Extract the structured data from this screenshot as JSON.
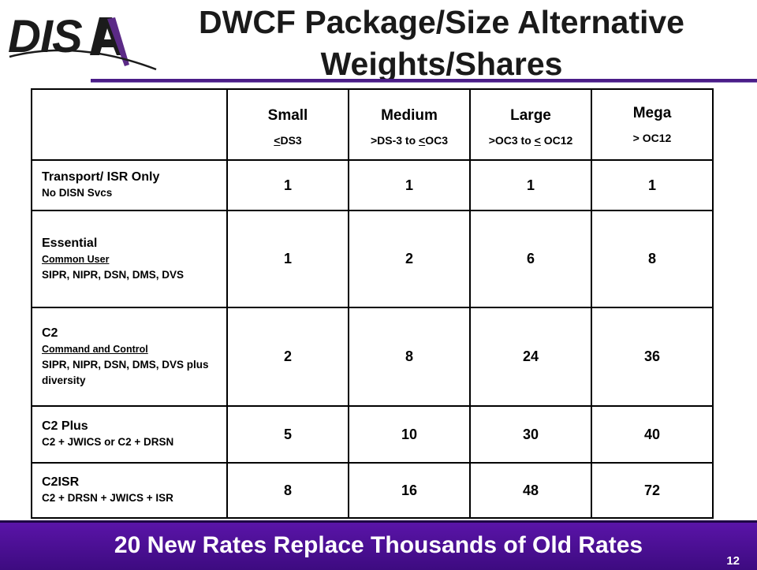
{
  "logo": {
    "text": "DISA"
  },
  "title": {
    "line1": "DWCF Package/Size Alternative",
    "line2": "Weights/Shares"
  },
  "table": {
    "columns": [
      {
        "name": "Small",
        "range_pre": "",
        "range_ul": "<",
        "range_post": "DS3"
      },
      {
        "name": "Medium",
        "range_pre": ">DS-3 to ",
        "range_ul": "<",
        "range_post": "OC3"
      },
      {
        "name": "Large",
        "range_pre": ">OC3 to ",
        "range_ul": "<",
        "range_post": " OC12"
      },
      {
        "name": "Mega",
        "range_pre": "> OC12",
        "range_ul": "",
        "range_post": ""
      }
    ],
    "rows": [
      {
        "title": "Transport/ ISR Only",
        "subtitle": "",
        "desc": "No DISN Svcs",
        "values": [
          "1",
          "1",
          "1",
          "1"
        ]
      },
      {
        "title": "Essential",
        "subtitle": "Common User",
        "desc": "SIPR, NIPR, DSN, DMS, DVS",
        "values": [
          "1",
          "2",
          "6",
          "8"
        ]
      },
      {
        "title": "C2",
        "subtitle": "Command and Control",
        "desc": "SIPR, NIPR, DSN, DMS, DVS plus diversity",
        "values": [
          "2",
          "8",
          "24",
          "36"
        ]
      },
      {
        "title": "C2 Plus",
        "subtitle": "",
        "desc": "C2 + JWICS or C2 + DRSN",
        "values": [
          "5",
          "10",
          "30",
          "40"
        ]
      },
      {
        "title": "C2ISR",
        "subtitle": "",
        "desc": "C2 + DRSN + JWICS + ISR",
        "values": [
          "8",
          "16",
          "48",
          "72"
        ]
      }
    ]
  },
  "footer": {
    "text": "20 New Rates Replace Thousands of Old Rates",
    "page_number": "12"
  },
  "colors": {
    "accent": "#4a1c88",
    "footer_bg": "#4a0f95",
    "logo_purple": "#5b2a86"
  }
}
